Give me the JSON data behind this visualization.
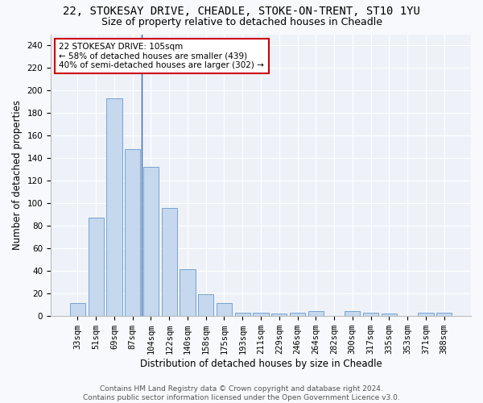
{
  "title_line1": "22, STOKESAY DRIVE, CHEADLE, STOKE-ON-TRENT, ST10 1YU",
  "title_line2": "Size of property relative to detached houses in Cheadle",
  "xlabel": "Distribution of detached houses by size in Cheadle",
  "ylabel": "Number of detached properties",
  "categories": [
    "33sqm",
    "51sqm",
    "69sqm",
    "87sqm",
    "104sqm",
    "122sqm",
    "140sqm",
    "158sqm",
    "175sqm",
    "193sqm",
    "211sqm",
    "229sqm",
    "246sqm",
    "264sqm",
    "282sqm",
    "300sqm",
    "317sqm",
    "335sqm",
    "353sqm",
    "371sqm",
    "388sqm"
  ],
  "values": [
    11,
    87,
    193,
    148,
    132,
    96,
    41,
    19,
    11,
    3,
    3,
    2,
    3,
    4,
    0,
    4,
    3,
    2,
    0,
    3,
    3
  ],
  "bar_color": "#c5d8ee",
  "bar_edge_color": "#6699cc",
  "vline_x_index": 4,
  "annotation_line1": "22 STOKESAY DRIVE: 105sqm",
  "annotation_line2": "← 58% of detached houses are smaller (439)",
  "annotation_line3": "40% of semi-detached houses are larger (302) →",
  "annotation_box_facecolor": "#ffffff",
  "annotation_box_edgecolor": "#cc0000",
  "vline_color": "#3366aa",
  "ylim": [
    0,
    250
  ],
  "yticks": [
    0,
    20,
    40,
    60,
    80,
    100,
    120,
    140,
    160,
    180,
    200,
    220,
    240
  ],
  "background_color": "#f8f9fc",
  "plot_bg_color": "#eef2f8",
  "grid_color": "#ffffff",
  "title1_fontsize": 10,
  "title2_fontsize": 9,
  "axis_label_fontsize": 8.5,
  "tick_fontsize": 7.5,
  "annotation_fontsize": 7.5,
  "footer_fontsize": 6.5,
  "footer_line1": "Contains HM Land Registry data © Crown copyright and database right 2024.",
  "footer_line2": "Contains public sector information licensed under the Open Government Licence v3.0."
}
